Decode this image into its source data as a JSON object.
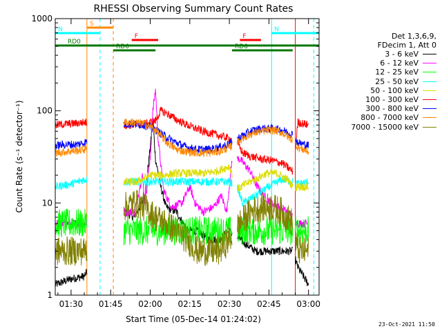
{
  "chart_data": {
    "type": "line",
    "title": "RHESSI Observing Summary Count Rates",
    "xlabel": "Start Time (05-Dec-14 01:24:02)",
    "ylabel": "Count Rate (s⁻¹ detector⁻¹)",
    "xlim_minutes": [
      84,
      184
    ],
    "ylim": [
      1,
      1000
    ],
    "yscale": "log",
    "x_ticks": [
      {
        "minute": 90,
        "label": "01:30"
      },
      {
        "minute": 105,
        "label": "01:45"
      },
      {
        "minute": 120,
        "label": "02:00"
      },
      {
        "minute": 135,
        "label": "02:15"
      },
      {
        "minute": 150,
        "label": "02:30"
      },
      {
        "minute": 165,
        "label": "02:45"
      },
      {
        "minute": 180,
        "label": "03:00"
      }
    ],
    "y_ticks": [
      {
        "value": 1,
        "label": "1"
      },
      {
        "value": 10,
        "label": "10"
      },
      {
        "value": 100,
        "label": "100"
      },
      {
        "value": 1000,
        "label": "1000"
      }
    ],
    "gaps": [
      [
        96,
        110
      ],
      [
        151,
        153
      ],
      [
        174,
        175
      ]
    ],
    "series": [
      {
        "name": "3 - 6 keV",
        "color": "#000000",
        "points": [
          [
            84,
            1.3
          ],
          [
            90,
            1.5
          ],
          [
            95,
            1.6
          ],
          [
            110,
            8
          ],
          [
            114,
            7
          ],
          [
            118,
            12
          ],
          [
            120,
            40
          ],
          [
            121,
            80
          ],
          [
            122,
            30
          ],
          [
            124,
            15
          ],
          [
            126,
            9
          ],
          [
            130,
            8
          ],
          [
            134,
            5
          ],
          [
            138,
            5
          ],
          [
            142,
            4
          ],
          [
            146,
            4
          ],
          [
            150,
            5
          ],
          [
            154,
            4
          ],
          [
            160,
            3
          ],
          [
            165,
            3
          ],
          [
            170,
            3
          ],
          [
            174,
            3
          ],
          [
            176,
            2
          ],
          [
            180,
            1.3
          ]
        ]
      },
      {
        "name": "6 - 12 keV",
        "color": "#ff00ff",
        "points": [
          [
            84,
            6
          ],
          [
            95,
            6
          ],
          [
            110,
            8
          ],
          [
            114,
            8
          ],
          [
            117,
            20
          ],
          [
            118,
            10
          ],
          [
            120,
            30
          ],
          [
            121,
            100
          ],
          [
            122,
            170
          ],
          [
            123,
            50
          ],
          [
            125,
            14
          ],
          [
            128,
            9
          ],
          [
            132,
            10
          ],
          [
            135,
            15
          ],
          [
            137,
            10
          ],
          [
            140,
            8
          ],
          [
            144,
            9
          ],
          [
            147,
            12
          ],
          [
            149,
            8
          ],
          [
            151,
            30
          ],
          [
            154,
            30
          ],
          [
            158,
            22
          ],
          [
            160,
            16
          ],
          [
            163,
            12
          ],
          [
            166,
            10
          ],
          [
            169,
            9
          ],
          [
            172,
            8
          ],
          [
            174,
            7
          ],
          [
            176,
            6
          ],
          [
            180,
            6
          ]
        ]
      },
      {
        "name": "12 - 25 keV",
        "color": "#00ff00",
        "points": [
          [
            84,
            6
          ],
          [
            95,
            6
          ],
          [
            110,
            5
          ],
          [
            115,
            5
          ],
          [
            120,
            5
          ],
          [
            125,
            5
          ],
          [
            130,
            5
          ],
          [
            135,
            5
          ],
          [
            140,
            5
          ],
          [
            145,
            5
          ],
          [
            150,
            5
          ],
          [
            155,
            5
          ],
          [
            160,
            5
          ],
          [
            165,
            5
          ],
          [
            170,
            5
          ],
          [
            174,
            5
          ],
          [
            176,
            5
          ],
          [
            180,
            5
          ]
        ]
      },
      {
        "name": "25 - 50 keV",
        "color": "#00ffff",
        "points": [
          [
            84,
            15
          ],
          [
            90,
            16
          ],
          [
            95,
            18
          ],
          [
            110,
            17
          ],
          [
            115,
            17
          ],
          [
            120,
            17
          ],
          [
            125,
            17
          ],
          [
            130,
            17
          ],
          [
            135,
            17
          ],
          [
            140,
            17
          ],
          [
            145,
            17
          ],
          [
            150,
            17
          ],
          [
            153,
            15
          ],
          [
            155,
            10
          ],
          [
            160,
            12
          ],
          [
            165,
            15
          ],
          [
            170,
            18
          ],
          [
            174,
            17
          ],
          [
            176,
            16
          ],
          [
            180,
            17
          ]
        ]
      },
      {
        "name": "50 - 100 keV",
        "color": "#dddd00",
        "points": [
          [
            110,
            17
          ],
          [
            115,
            17
          ],
          [
            120,
            20
          ],
          [
            125,
            20
          ],
          [
            130,
            21
          ],
          [
            135,
            21
          ],
          [
            140,
            21
          ],
          [
            145,
            22
          ],
          [
            150,
            25
          ],
          [
            153,
            14
          ],
          [
            156,
            16
          ],
          [
            160,
            18
          ],
          [
            164,
            21
          ],
          [
            168,
            21
          ],
          [
            172,
            18
          ],
          [
            174,
            15
          ],
          [
            180,
            15
          ]
        ]
      },
      {
        "name": "100 - 300 keV",
        "color": "#ff0000",
        "points": [
          [
            84,
            70
          ],
          [
            88,
            72
          ],
          [
            92,
            73
          ],
          [
            95,
            75
          ],
          [
            110,
            70
          ],
          [
            114,
            70
          ],
          [
            118,
            72
          ],
          [
            122,
            78
          ],
          [
            124,
            100
          ],
          [
            126,
            95
          ],
          [
            130,
            80
          ],
          [
            135,
            68
          ],
          [
            140,
            60
          ],
          [
            145,
            55
          ],
          [
            150,
            50
          ],
          [
            153,
            45
          ],
          [
            155,
            35
          ],
          [
            158,
            32
          ],
          [
            162,
            30
          ],
          [
            166,
            29
          ],
          [
            170,
            27
          ],
          [
            174,
            22
          ],
          [
            176,
            75
          ],
          [
            180,
            70
          ]
        ]
      },
      {
        "name": "300 - 800 keV",
        "color": "#0000ff",
        "points": [
          [
            84,
            42
          ],
          [
            88,
            43
          ],
          [
            92,
            43
          ],
          [
            95,
            45
          ],
          [
            110,
            72
          ],
          [
            114,
            72
          ],
          [
            118,
            70
          ],
          [
            122,
            62
          ],
          [
            126,
            52
          ],
          [
            130,
            45
          ],
          [
            134,
            40
          ],
          [
            138,
            38
          ],
          [
            142,
            38
          ],
          [
            146,
            40
          ],
          [
            150,
            44
          ],
          [
            154,
            52
          ],
          [
            158,
            60
          ],
          [
            162,
            64
          ],
          [
            166,
            64
          ],
          [
            170,
            62
          ],
          [
            174,
            55
          ],
          [
            176,
            45
          ],
          [
            180,
            42
          ]
        ]
      },
      {
        "name": "800 - 7000 keV",
        "color": "#ff8800",
        "points": [
          [
            84,
            35
          ],
          [
            88,
            36
          ],
          [
            92,
            37
          ],
          [
            95,
            38
          ],
          [
            110,
            75
          ],
          [
            114,
            75
          ],
          [
            118,
            72
          ],
          [
            122,
            62
          ],
          [
            126,
            46
          ],
          [
            130,
            38
          ],
          [
            134,
            36
          ],
          [
            138,
            35
          ],
          [
            142,
            35
          ],
          [
            146,
            36
          ],
          [
            150,
            40
          ],
          [
            154,
            48
          ],
          [
            158,
            56
          ],
          [
            162,
            60
          ],
          [
            166,
            62
          ],
          [
            170,
            58
          ],
          [
            174,
            48
          ],
          [
            176,
            40
          ],
          [
            180,
            36
          ]
        ]
      },
      {
        "name": "7000 - 15000 keV",
        "color": "#808000",
        "points": [
          [
            84,
            3
          ],
          [
            88,
            3
          ],
          [
            92,
            3
          ],
          [
            95,
            3
          ],
          [
            110,
            9
          ],
          [
            114,
            10
          ],
          [
            118,
            9
          ],
          [
            122,
            7
          ],
          [
            126,
            6
          ],
          [
            130,
            5
          ],
          [
            134,
            4
          ],
          [
            138,
            3
          ],
          [
            142,
            3
          ],
          [
            146,
            3
          ],
          [
            150,
            4
          ],
          [
            154,
            6
          ],
          [
            158,
            8
          ],
          [
            162,
            9
          ],
          [
            166,
            9
          ],
          [
            170,
            8
          ],
          [
            174,
            6
          ],
          [
            176,
            3
          ],
          [
            180,
            3
          ]
        ]
      }
    ],
    "flag_bars": [
      {
        "label": "S",
        "color": "#ff8800",
        "start": 96,
        "end": 106,
        "row": "top"
      },
      {
        "label": "N",
        "color": "#00ffff",
        "start": 84,
        "end": 101,
        "row": "top2"
      },
      {
        "label": "N",
        "color": "#00ffff",
        "start": 166,
        "end": 184,
        "row": "top2"
      },
      {
        "label": "F",
        "color": "#ff0000",
        "start": 113,
        "end": 123,
        "row": "mid"
      },
      {
        "label": "F",
        "color": "#ff0000",
        "start": 154,
        "end": 162,
        "row": "mid"
      },
      {
        "label": "RD0",
        "color": "#007700",
        "start": 84,
        "end": 184,
        "row": "low"
      },
      {
        "label": "RD6",
        "color": "#007700",
        "start": 106,
        "end": 122,
        "row": "low2"
      },
      {
        "label": "RD6",
        "color": "#007700",
        "start": 151,
        "end": 174,
        "row": "low2"
      }
    ],
    "vertical_lines": [
      {
        "minute": 84,
        "color": "#00ffff",
        "style": "solid"
      },
      {
        "minute": 96,
        "color": "#ff8800",
        "style": "solid"
      },
      {
        "minute": 101,
        "color": "#00ffff",
        "style": "dashed"
      },
      {
        "minute": 106,
        "color": "#ff8800",
        "style": "dashed"
      },
      {
        "minute": 166,
        "color": "#00ffff",
        "style": "solid"
      },
      {
        "minute": 175,
        "color": "#ff0000",
        "style": "solid"
      },
      {
        "minute": 182,
        "color": "#00ffff",
        "style": "dashed"
      }
    ],
    "legend": {
      "placement": "right",
      "header": [
        "Det 1,3,6,9,",
        "FDecim 1, Att 0"
      ]
    },
    "footer_stamp": "23-Oct-2021 11:50"
  }
}
